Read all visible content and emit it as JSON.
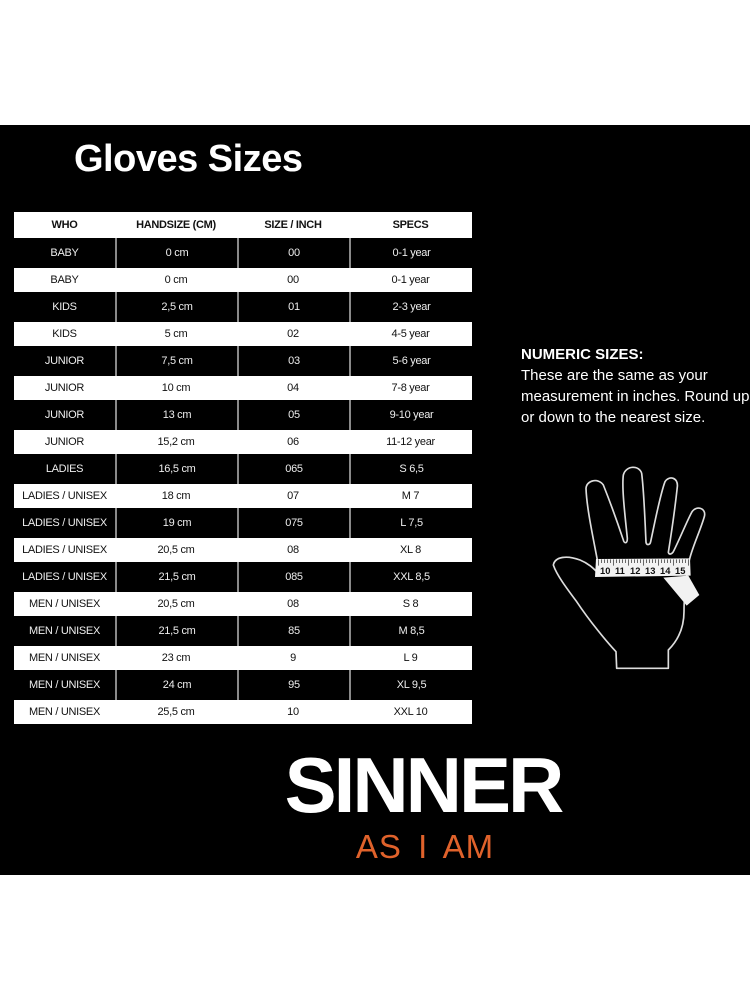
{
  "title": "Gloves Sizes",
  "table": {
    "headers": [
      "WHO",
      "HANDSIZE (CM)",
      "SIZE / INCH",
      "SPECS"
    ],
    "rows": [
      [
        "BABY",
        "0 cm",
        "00",
        "0-1 year"
      ],
      [
        "BABY",
        "0 cm",
        "00",
        "0-1 year"
      ],
      [
        "KIDS",
        "2,5 cm",
        "01",
        "2-3 year"
      ],
      [
        "KIDS",
        "5 cm",
        "02",
        "4-5 year"
      ],
      [
        "JUNIOR",
        "7,5 cm",
        "03",
        "5-6 year"
      ],
      [
        "JUNIOR",
        "10 cm",
        "04",
        "7-8 year"
      ],
      [
        "JUNIOR",
        "13 cm",
        "05",
        "9-10 year"
      ],
      [
        "JUNIOR",
        "15,2 cm",
        "06",
        "11-12 year"
      ],
      [
        "LADIES",
        "16,5 cm",
        "065",
        "S 6,5"
      ],
      [
        "LADIES / UNISEX",
        "18 cm",
        "07",
        "M 7"
      ],
      [
        "LADIES / UNISEX",
        "19 cm",
        "075",
        "L 7,5"
      ],
      [
        "LADIES / UNISEX",
        "20,5 cm",
        "08",
        "XL 8"
      ],
      [
        "LADIES / UNISEX",
        "21,5 cm",
        "085",
        "XXL 8,5"
      ],
      [
        "MEN / UNISEX",
        "20,5 cm",
        "08",
        "S 8"
      ],
      [
        "MEN / UNISEX",
        "21,5 cm",
        "85",
        "M 8,5"
      ],
      [
        "MEN / UNISEX",
        "23 cm",
        "9",
        "L 9"
      ],
      [
        "MEN / UNISEX",
        "24 cm",
        "95",
        "XL 9,5"
      ],
      [
        "MEN / UNISEX",
        "25,5 cm",
        "10",
        "XXL 10"
      ]
    ]
  },
  "note": {
    "heading": "NUMERIC SIZES:",
    "text": "These are the same as your measurement in inches. Round up or down to the nearest size."
  },
  "hand_illustration": {
    "icon": "hand-with-measuring-tape-icon",
    "tape_numbers": [
      "10",
      "11",
      "12",
      "13",
      "14",
      "15"
    ]
  },
  "brand": {
    "logo": "SINNER",
    "tagline": "AS I AM",
    "tagline_color": "#e0622b"
  }
}
